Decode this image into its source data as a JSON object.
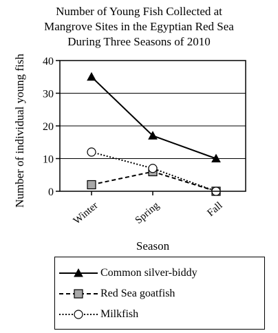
{
  "chart_data": {
    "type": "line",
    "title_lines": [
      "Number of Young Fish Collected at",
      "Mangrove Sites in the Egyptian Red Sea",
      "During Three Seasons of 2010"
    ],
    "xlabel": "Season",
    "ylabel": "Number of individual young fish",
    "categories": [
      "Winter",
      "Spring",
      "Fall"
    ],
    "ylim": [
      0,
      40
    ],
    "yticks": [
      0,
      10,
      20,
      30,
      40
    ],
    "grid": true,
    "legend_position": "bottom",
    "series": [
      {
        "name": "Common silver-biddy",
        "values": [
          35,
          17,
          10
        ],
        "marker": "triangle-filled",
        "line_style": "solid",
        "color": "#000000"
      },
      {
        "name": "Red Sea goatfish",
        "values": [
          2,
          6,
          0
        ],
        "marker": "square-gray",
        "line_style": "dashed",
        "color": "#000000"
      },
      {
        "name": "Milkfish",
        "values": [
          12,
          7,
          0
        ],
        "marker": "circle-open",
        "line_style": "dotted",
        "color": "#000000"
      }
    ]
  }
}
